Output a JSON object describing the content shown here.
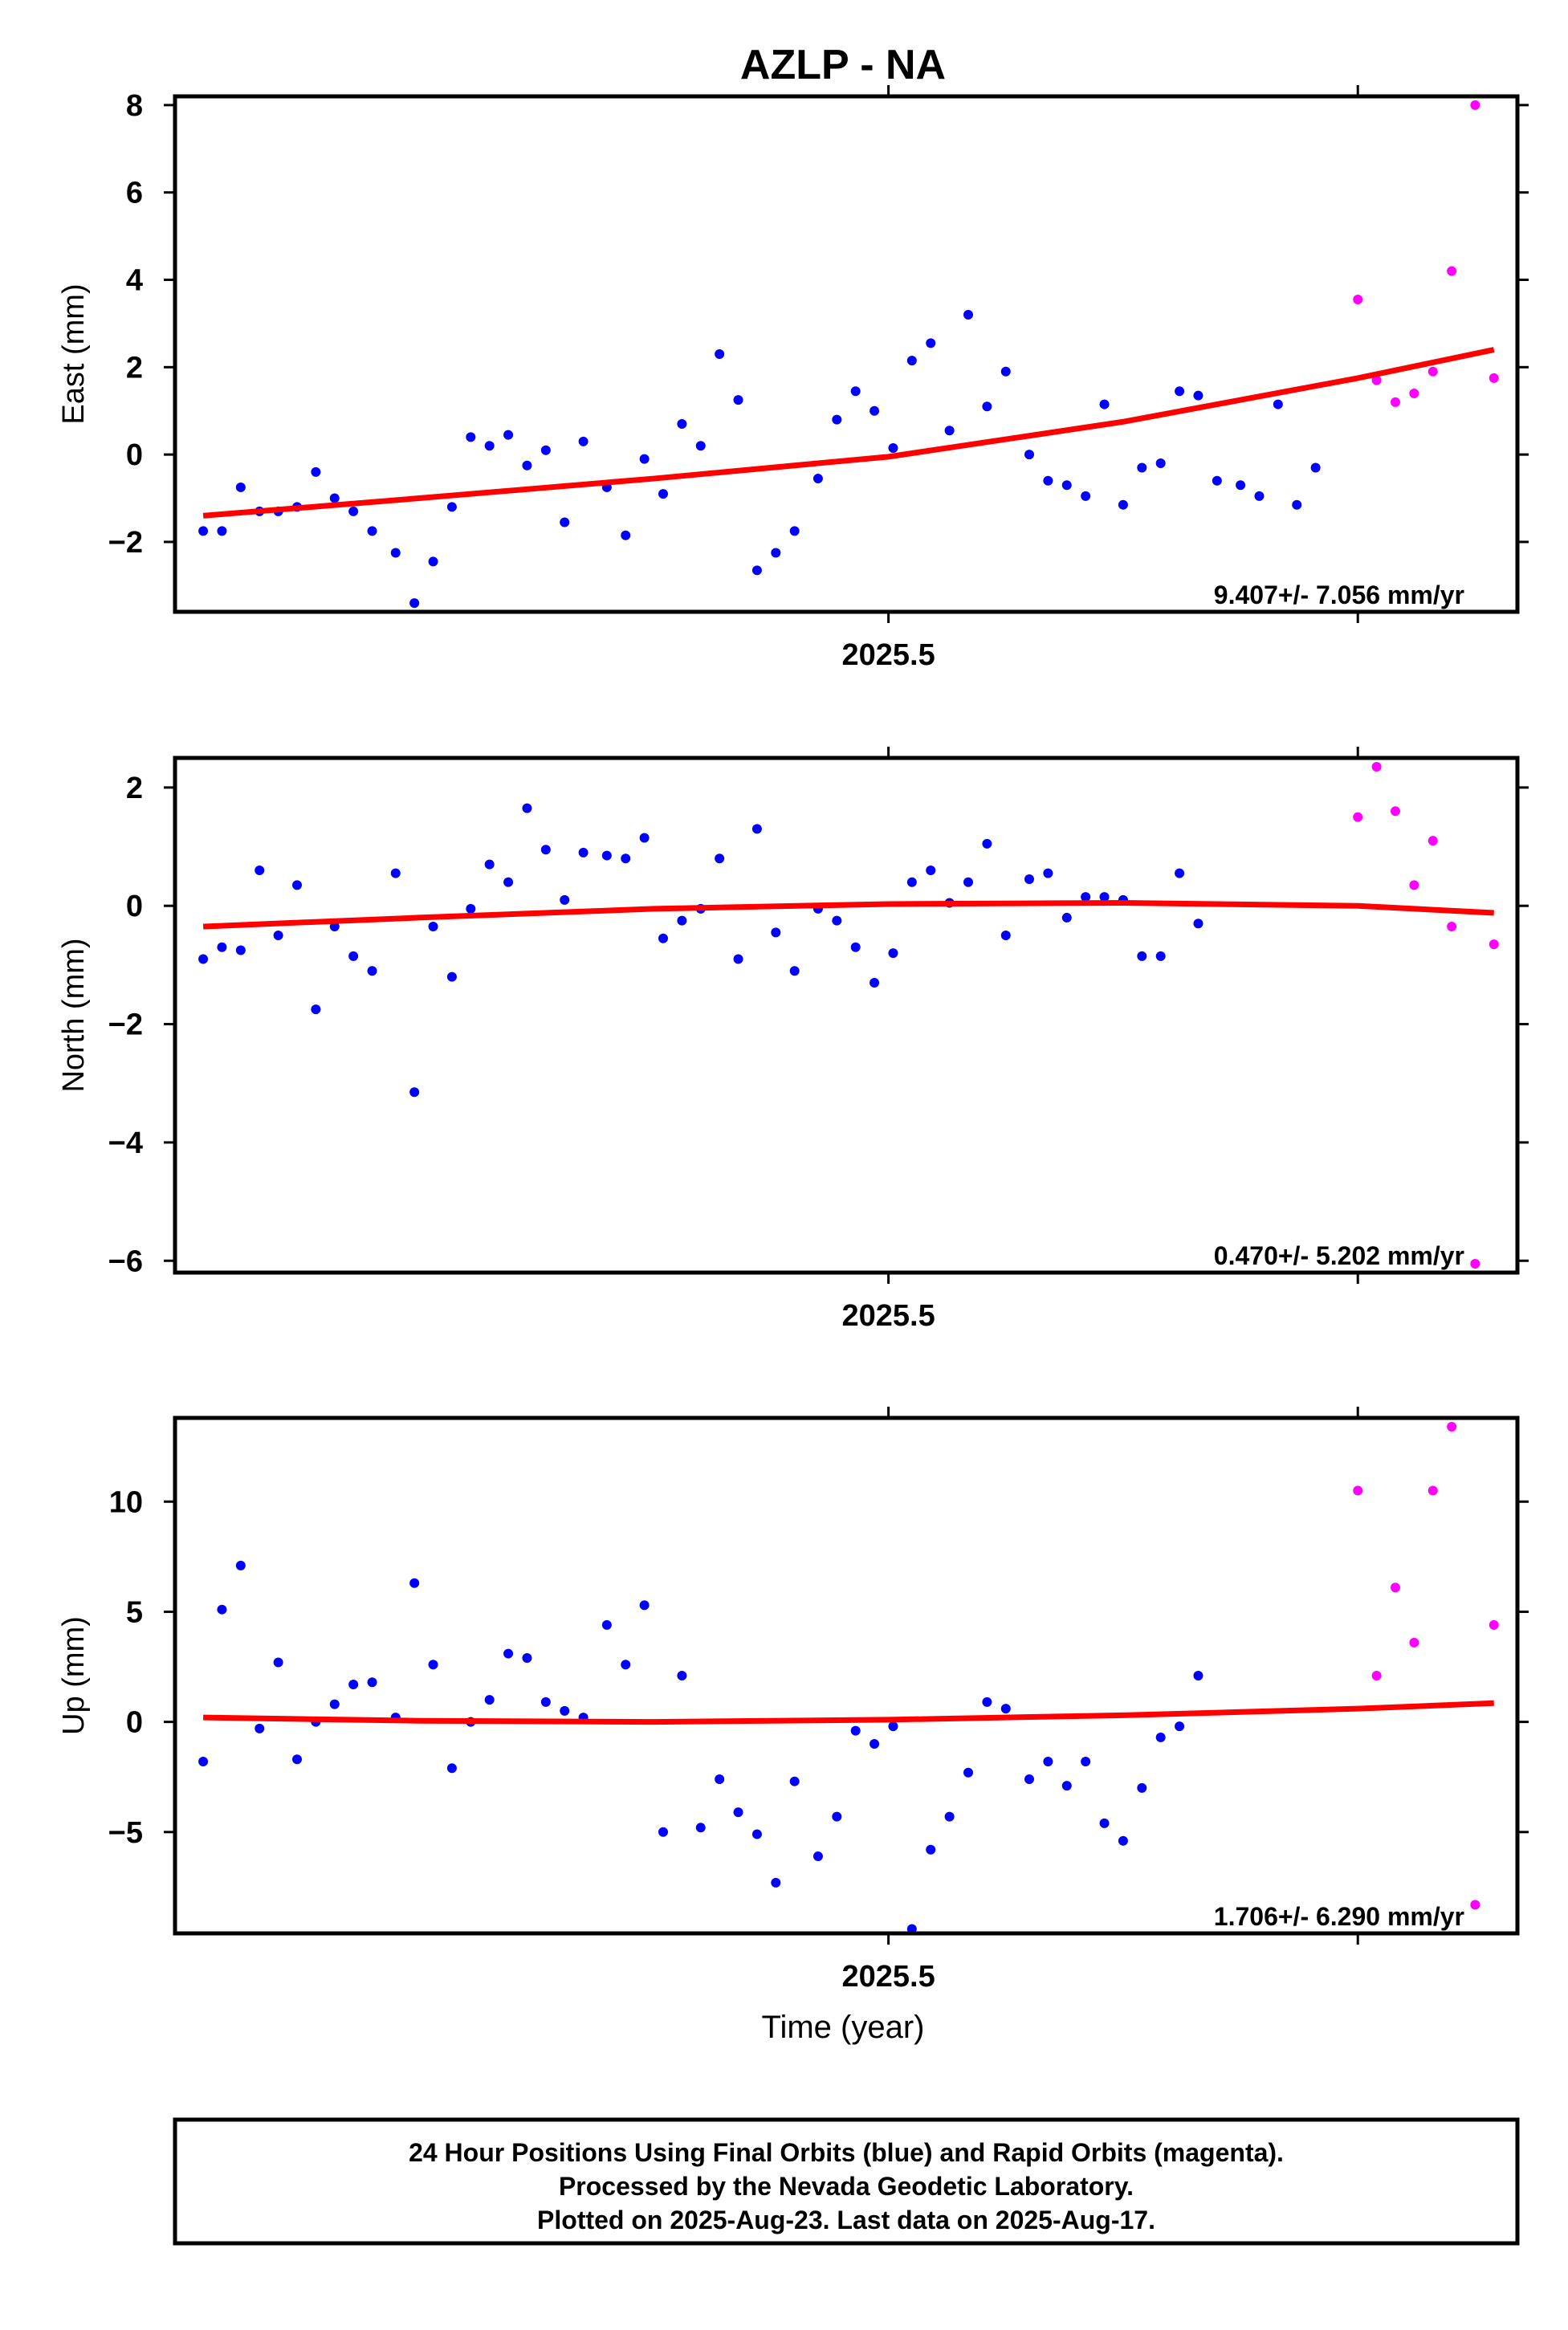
{
  "title": "AZLP - NA",
  "xlabel": "Time (year)",
  "x_tick_label": "2025.5",
  "footer": {
    "line1": "24 Hour Positions Using Final Orbits (blue) and Rapid Orbits (magenta).",
    "line2": "Processed by the Nevada Geodetic Laboratory.",
    "line3": "Plotted on 2025-Aug-23. Last data on 2025-Aug-17."
  },
  "colors": {
    "final": "#0000ff",
    "rapid": "#ff00ff",
    "fit": "#ff0000",
    "axes": "#000000"
  },
  "chart_data": [
    {
      "type": "scatter",
      "ylabel": "East (mm)",
      "rate": "9.407+/- 7.056 mm/yr",
      "xlim": [
        2025.348,
        2025.634
      ],
      "ylim": [
        -3.6,
        8.2
      ],
      "yticks": [
        -2,
        0,
        2,
        4,
        6,
        8
      ],
      "xticks": [
        2025.5
      ],
      "grid": false,
      "series": [
        {
          "x": [
            2025.354,
            2025.358,
            2025.362,
            2025.366,
            2025.37,
            2025.374,
            2025.378,
            2025.382,
            2025.386,
            2025.39,
            2025.395,
            2025.399,
            2025.403,
            2025.407,
            2025.411,
            2025.415,
            2025.419,
            2025.423,
            2025.427,
            2025.431,
            2025.435,
            2025.44,
            2025.444,
            2025.448,
            2025.452,
            2025.456,
            2025.46,
            2025.464,
            2025.468,
            2025.472,
            2025.476,
            2025.48,
            2025.485,
            2025.489,
            2025.493,
            2025.497,
            2025.501,
            2025.505,
            2025.509,
            2025.513,
            2025.517,
            2025.521,
            2025.525,
            2025.53,
            2025.534,
            2025.538,
            2025.542,
            2025.546,
            2025.55,
            2025.554,
            2025.558,
            2025.562,
            2025.566,
            2025.57,
            2025.575,
            2025.579,
            2025.583,
            2025.587,
            2025.591
          ],
          "y": [
            -1.75,
            -1.75,
            -0.75,
            -1.3,
            -1.3,
            -1.2,
            -0.4,
            -1.0,
            -1.3,
            -1.75,
            -2.25,
            -3.4,
            -2.45,
            -1.2,
            0.4,
            0.2,
            0.45,
            -0.25,
            0.1,
            -1.55,
            0.3,
            -0.75,
            -1.85,
            -0.1,
            -0.9,
            0.7,
            0.2,
            2.3,
            1.25,
            -2.65,
            -2.25,
            -1.75,
            -0.55,
            0.8,
            1.45,
            1.0,
            0.15,
            2.15,
            2.55,
            0.55,
            3.2,
            1.1,
            1.9,
            0.0,
            -0.6,
            -0.7,
            -0.95,
            1.15,
            -1.15,
            -0.3,
            -0.2,
            1.45,
            1.35,
            -0.6,
            -0.7,
            -0.95,
            1.15,
            -1.15,
            -0.3
          ]
        },
        {
          "x": [
            2025.6,
            2025.604,
            2025.608,
            2025.612,
            2025.616,
            2025.62,
            2025.625,
            2025.629
          ],
          "y": [
            3.55,
            1.7,
            1.2,
            1.4,
            1.9,
            4.2,
            8.0,
            1.75
          ]
        }
      ],
      "fit": {
        "x": [
          2025.354,
          2025.4,
          2025.45,
          2025.5,
          2025.55,
          2025.6,
          2025.629
        ],
        "y": [
          -1.4,
          -1.0,
          -0.55,
          -0.05,
          0.75,
          1.75,
          2.4
        ]
      }
    },
    {
      "type": "scatter",
      "ylabel": "North (mm)",
      "rate": "0.470+/- 5.202 mm/yr",
      "xlim": [
        2025.348,
        2025.634
      ],
      "ylim": [
        -6.2,
        2.5
      ],
      "yticks": [
        -6,
        -4,
        -2,
        0,
        2
      ],
      "xticks": [
        2025.5
      ],
      "grid": false,
      "series": [
        {
          "x": [
            2025.354,
            2025.358,
            2025.362,
            2025.366,
            2025.37,
            2025.374,
            2025.378,
            2025.382,
            2025.386,
            2025.39,
            2025.395,
            2025.399,
            2025.403,
            2025.407,
            2025.411,
            2025.415,
            2025.419,
            2025.423,
            2025.427,
            2025.431,
            2025.435,
            2025.44,
            2025.444,
            2025.448,
            2025.452,
            2025.456,
            2025.46,
            2025.464,
            2025.468,
            2025.472,
            2025.476,
            2025.48,
            2025.485,
            2025.489,
            2025.493,
            2025.497,
            2025.501,
            2025.505,
            2025.509,
            2025.513,
            2025.517,
            2025.521,
            2025.525,
            2025.53,
            2025.534,
            2025.538,
            2025.542,
            2025.546,
            2025.55,
            2025.554,
            2025.558,
            2025.562,
            2025.566
          ],
          "y": [
            -0.9,
            -0.7,
            -0.75,
            0.6,
            -0.5,
            0.35,
            -1.75,
            -0.35,
            -0.85,
            -1.1,
            0.55,
            -3.15,
            -0.35,
            -1.2,
            -0.05,
            0.7,
            0.4,
            1.65,
            0.95,
            0.1,
            0.9,
            0.85,
            0.8,
            1.15,
            -0.55,
            -0.25,
            -0.05,
            0.8,
            -0.9,
            1.3,
            -0.45,
            -1.1,
            -0.05,
            -0.25,
            -0.7,
            -1.3,
            -0.8,
            0.4,
            0.6,
            0.05,
            0.4,
            1.05,
            -0.5,
            0.45,
            0.55,
            -0.2,
            0.15,
            0.15,
            0.1,
            -0.85,
            -0.85,
            0.55,
            -0.3
          ]
        },
        {
          "x": [
            2025.6,
            2025.604,
            2025.608,
            2025.612,
            2025.616,
            2025.62,
            2025.625,
            2025.629
          ],
          "y": [
            1.5,
            2.35,
            1.6,
            0.35,
            1.1,
            -0.35,
            -6.05,
            -0.65
          ]
        }
      ],
      "fit": {
        "x": [
          2025.354,
          2025.4,
          2025.45,
          2025.5,
          2025.55,
          2025.6,
          2025.629
        ],
        "y": [
          -0.35,
          -0.2,
          -0.05,
          0.03,
          0.05,
          0.0,
          -0.12
        ]
      }
    },
    {
      "type": "scatter",
      "ylabel": "Up (mm)",
      "rate": "1.706+/- 6.290 mm/yr",
      "xlim": [
        2025.348,
        2025.634
      ],
      "ylim": [
        -9.6,
        13.8
      ],
      "yticks": [
        -5,
        0,
        5,
        10
      ],
      "xticks": [
        2025.5
      ],
      "grid": false,
      "series": [
        {
          "x": [
            2025.354,
            2025.358,
            2025.362,
            2025.366,
            2025.37,
            2025.374,
            2025.378,
            2025.382,
            2025.386,
            2025.39,
            2025.395,
            2025.399,
            2025.403,
            2025.407,
            2025.411,
            2025.415,
            2025.419,
            2025.423,
            2025.427,
            2025.431,
            2025.435,
            2025.44,
            2025.444,
            2025.448,
            2025.452,
            2025.456,
            2025.46,
            2025.464,
            2025.468,
            2025.472,
            2025.476,
            2025.48,
            2025.485,
            2025.489,
            2025.493,
            2025.497,
            2025.501,
            2025.505,
            2025.509,
            2025.513,
            2025.517,
            2025.521,
            2025.525,
            2025.53,
            2025.534,
            2025.538,
            2025.542,
            2025.546,
            2025.55,
            2025.554,
            2025.558,
            2025.562,
            2025.566
          ],
          "y": [
            -1.8,
            5.1,
            7.1,
            -0.3,
            2.7,
            -1.7,
            0.0,
            0.8,
            1.7,
            1.8,
            0.2,
            6.3,
            2.6,
            -2.1,
            0.0,
            1.0,
            3.1,
            2.9,
            0.9,
            0.5,
            0.2,
            4.4,
            2.6,
            5.3,
            -5.0,
            2.1,
            -4.8,
            -2.6,
            -4.1,
            -5.1,
            -7.3,
            -2.7,
            -6.1,
            -4.3,
            -0.4,
            -1.0,
            -0.2,
            -9.4,
            -5.8,
            -4.3,
            -2.3,
            0.9,
            0.6,
            -2.6,
            -1.8,
            -2.9,
            -1.8,
            -4.6,
            -5.4,
            -3.0,
            -0.7,
            -0.2,
            2.1
          ]
        },
        {
          "x": [
            2025.6,
            2025.604,
            2025.608,
            2025.612,
            2025.616,
            2025.62,
            2025.625,
            2025.629
          ],
          "y": [
            10.5,
            2.1,
            6.1,
            3.6,
            10.5,
            13.4,
            -8.3,
            4.4
          ]
        }
      ],
      "fit": {
        "x": [
          2025.354,
          2025.4,
          2025.45,
          2025.5,
          2025.55,
          2025.6,
          2025.629
        ],
        "y": [
          0.2,
          0.05,
          0.0,
          0.1,
          0.3,
          0.6,
          0.85
        ]
      }
    }
  ]
}
